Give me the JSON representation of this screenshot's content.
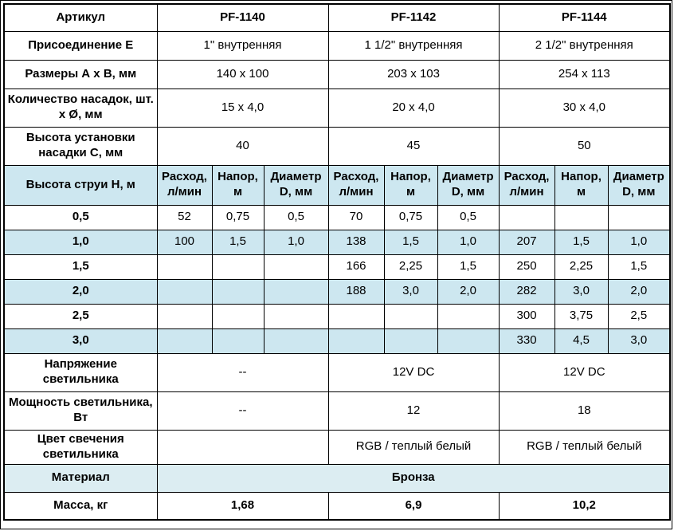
{
  "colors": {
    "stripe_background": "#cde7f0",
    "material_row_background": "#dcedf2",
    "product_code_text": "#1b3ca0",
    "grid_border": "#000000"
  },
  "table": {
    "products": [
      "PF-1140",
      "PF-1142",
      "PF-1144"
    ],
    "rows": [
      {
        "name": "articul",
        "label": "Артикул",
        "stripe": false,
        "cells": [
          {
            "t": "PF-1140",
            "span": 3,
            "cls": "product-code"
          },
          {
            "t": "PF-1142",
            "span": 3,
            "cls": "product-code"
          },
          {
            "t": "PF-1144",
            "span": 3,
            "cls": "product-code"
          }
        ]
      },
      {
        "name": "connection",
        "label": "Присоединение Е",
        "stripe": false,
        "cells": [
          {
            "t": "1\" внутренняя",
            "span": 3
          },
          {
            "t": "1 1/2\" внутренняя",
            "span": 3
          },
          {
            "t": "2 1/2\" внутренняя",
            "span": 3
          }
        ]
      },
      {
        "name": "dimensions",
        "label": "Размеры А х В, мм",
        "stripe": false,
        "cells": [
          {
            "t": "140 x 100",
            "span": 3
          },
          {
            "t": "203 x 103",
            "span": 3
          },
          {
            "t": "254 x 113",
            "span": 3
          }
        ]
      },
      {
        "name": "nozzles",
        "label": "Количество насадок, шт. х Ø, мм",
        "stripe": false,
        "cells": [
          {
            "t": "15 x 4,0",
            "span": 3
          },
          {
            "t": "20 x 4,0",
            "span": 3
          },
          {
            "t": "30 x 4,0",
            "span": 3
          }
        ]
      },
      {
        "name": "install-height",
        "label": "Высота установки насадки С, мм",
        "stripe": false,
        "cells": [
          {
            "t": "40",
            "span": 3
          },
          {
            "t": "45",
            "span": 3
          },
          {
            "t": "50",
            "span": 3
          }
        ]
      },
      {
        "name": "jet-header",
        "label": "Высота струи Н, м",
        "stripe": true,
        "cells": [
          {
            "t": "Расход, л/мин",
            "span": 1,
            "cls": "subheader"
          },
          {
            "t": "Напор, м",
            "span": 1,
            "cls": "subheader"
          },
          {
            "t": "Диаметр D, мм",
            "span": 1,
            "cls": "subheader"
          },
          {
            "t": "Расход, л/мин",
            "span": 1,
            "cls": "subheader"
          },
          {
            "t": "Напор, м",
            "span": 1,
            "cls": "subheader"
          },
          {
            "t": "Диаметр D, мм",
            "span": 1,
            "cls": "subheader"
          },
          {
            "t": "Расход, л/мин",
            "span": 1,
            "cls": "subheader"
          },
          {
            "t": "Напор, м",
            "span": 1,
            "cls": "subheader"
          },
          {
            "t": "Диаметр D, мм",
            "span": 1,
            "cls": "subheader"
          }
        ]
      },
      {
        "name": "h05",
        "label": "0,5",
        "stripe": false,
        "cells": [
          {
            "t": "52"
          },
          {
            "t": "0,75"
          },
          {
            "t": "0,5"
          },
          {
            "t": "70"
          },
          {
            "t": "0,75"
          },
          {
            "t": "0,5"
          },
          {
            "t": ""
          },
          {
            "t": ""
          },
          {
            "t": ""
          }
        ]
      },
      {
        "name": "h10",
        "label": "1,0",
        "stripe": true,
        "cells": [
          {
            "t": "100"
          },
          {
            "t": "1,5"
          },
          {
            "t": "1,0"
          },
          {
            "t": "138"
          },
          {
            "t": "1,5"
          },
          {
            "t": "1,0"
          },
          {
            "t": "207"
          },
          {
            "t": "1,5"
          },
          {
            "t": "1,0"
          }
        ]
      },
      {
        "name": "h15",
        "label": "1,5",
        "stripe": false,
        "cells": [
          {
            "t": ""
          },
          {
            "t": ""
          },
          {
            "t": ""
          },
          {
            "t": "166"
          },
          {
            "t": "2,25"
          },
          {
            "t": "1,5"
          },
          {
            "t": "250"
          },
          {
            "t": "2,25"
          },
          {
            "t": "1,5"
          }
        ]
      },
      {
        "name": "h20",
        "label": "2,0",
        "stripe": true,
        "cells": [
          {
            "t": ""
          },
          {
            "t": ""
          },
          {
            "t": ""
          },
          {
            "t": "188"
          },
          {
            "t": "3,0"
          },
          {
            "t": "2,0"
          },
          {
            "t": "282"
          },
          {
            "t": "3,0"
          },
          {
            "t": "2,0"
          }
        ]
      },
      {
        "name": "h25",
        "label": "2,5",
        "stripe": false,
        "cells": [
          {
            "t": ""
          },
          {
            "t": ""
          },
          {
            "t": ""
          },
          {
            "t": ""
          },
          {
            "t": ""
          },
          {
            "t": ""
          },
          {
            "t": "300"
          },
          {
            "t": "3,75"
          },
          {
            "t": "2,5"
          }
        ]
      },
      {
        "name": "h30",
        "label": "3,0",
        "stripe": true,
        "cells": [
          {
            "t": ""
          },
          {
            "t": ""
          },
          {
            "t": ""
          },
          {
            "t": ""
          },
          {
            "t": ""
          },
          {
            "t": ""
          },
          {
            "t": "330"
          },
          {
            "t": "4,5"
          },
          {
            "t": "3,0"
          }
        ]
      },
      {
        "name": "voltage",
        "label": "Напряжение светильника",
        "stripe": false,
        "cells": [
          {
            "t": "--",
            "span": 3
          },
          {
            "t": "12V DC",
            "span": 3
          },
          {
            "t": "12V DC",
            "span": 3
          }
        ]
      },
      {
        "name": "power",
        "label": "Мощность светильника, Вт",
        "stripe": false,
        "cells": [
          {
            "t": "--",
            "span": 3
          },
          {
            "t": "12",
            "span": 3
          },
          {
            "t": "18",
            "span": 3
          }
        ]
      },
      {
        "name": "glow-color",
        "label": "Цвет свечения светильника",
        "stripe": false,
        "cells": [
          {
            "t": "",
            "span": 3
          },
          {
            "t": "RGB / теплый белый",
            "span": 3
          },
          {
            "t": "RGB / теплый белый",
            "span": 3
          }
        ]
      },
      {
        "name": "material",
        "label": "Материал",
        "stripe": "material",
        "cells": [
          {
            "t": "Бронза",
            "span": 9,
            "cls": "emphasis"
          }
        ]
      },
      {
        "name": "mass",
        "label": "Масса, кг",
        "stripe": false,
        "cells": [
          {
            "t": "1,68",
            "span": 3,
            "cls": "emphasis"
          },
          {
            "t": "6,9",
            "span": 3,
            "cls": "emphasis"
          },
          {
            "t": "10,2",
            "span": 3,
            "cls": "emphasis"
          }
        ]
      }
    ]
  }
}
